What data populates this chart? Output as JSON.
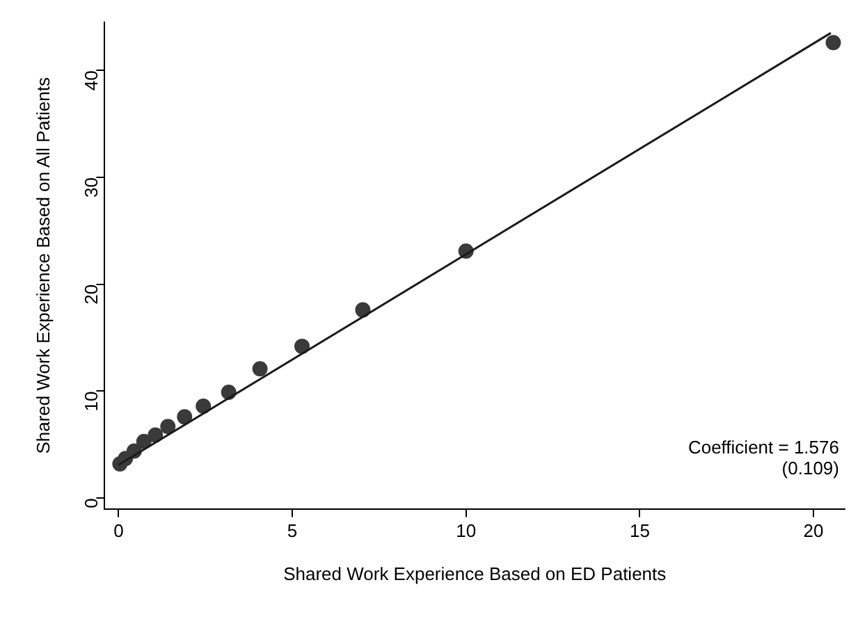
{
  "chart_data": {
    "type": "scatter",
    "xlabel": "Shared Work Experience Based on ED Patients",
    "ylabel": "Shared Work Experience Based on All Patients",
    "xlim": [
      -0.4,
      20.9
    ],
    "xticks": [
      0,
      5,
      10,
      15,
      20
    ],
    "ylim": [
      -1,
      44.5
    ],
    "yticks": [
      0,
      10,
      20,
      30,
      40
    ],
    "grid": false,
    "legend": false,
    "marker": "circle",
    "series": [
      {
        "color": "#3a3a3a",
        "x": [
          0.04,
          0.2,
          0.45,
          0.73,
          1.06,
          1.42,
          1.9,
          2.44,
          3.17,
          4.07,
          5.28,
          7.03,
          10.0,
          20.57
        ],
        "values": [
          3.2,
          3.7,
          4.4,
          5.3,
          5.9,
          6.7,
          7.6,
          8.6,
          9.9,
          12.1,
          14.2,
          17.6,
          23.1,
          42.6
        ]
      },
      {
        "type": "line",
        "color": "#1a1a1a",
        "x": [
          0,
          20.5
        ],
        "values": [
          3.1,
          43.5
        ],
        "marker": "none"
      }
    ],
    "annotations": [
      "Coefficient = 1.576",
      "(0.109)"
    ]
  }
}
